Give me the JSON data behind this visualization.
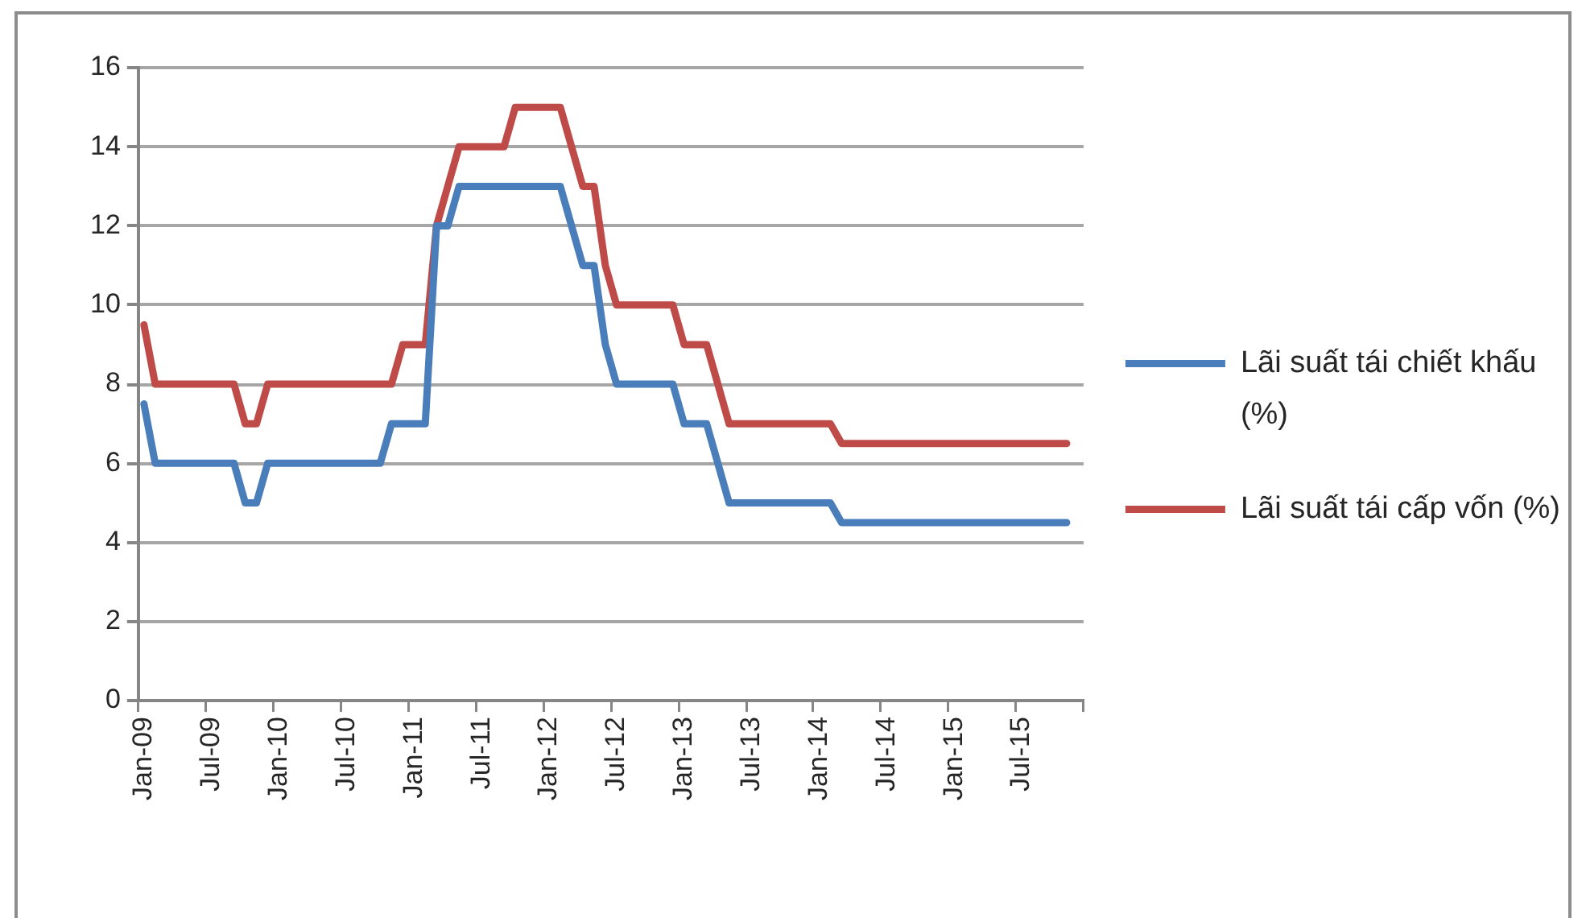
{
  "chart_data": {
    "type": "line",
    "categories": [
      "Jan-09",
      null,
      null,
      null,
      null,
      null,
      "Jul-09",
      null,
      null,
      null,
      null,
      null,
      "Jan-10",
      null,
      null,
      null,
      null,
      null,
      "Jul-10",
      null,
      null,
      null,
      null,
      null,
      "Jan-11",
      null,
      null,
      null,
      null,
      null,
      "Jul-11",
      null,
      null,
      null,
      null,
      null,
      "Jan-12",
      null,
      null,
      null,
      null,
      null,
      "Jul-12",
      null,
      null,
      null,
      null,
      null,
      "Jan-13",
      null,
      null,
      null,
      null,
      null,
      "Jul-13",
      null,
      null,
      null,
      null,
      null,
      "Jan-14",
      null,
      null,
      null,
      null,
      null,
      "Jul-14",
      null,
      null,
      null,
      null,
      null,
      "Jan-15",
      null,
      null,
      null,
      null,
      null,
      "Jul-15",
      null,
      null,
      null,
      null,
      null
    ],
    "series": [
      {
        "name": "Lãi suất tái chiết khấu (%)",
        "color": "#4a7ebb",
        "values": [
          7.5,
          6,
          6,
          6,
          6,
          6,
          6,
          6,
          6,
          5,
          5,
          6,
          6,
          6,
          6,
          6,
          6,
          6,
          6,
          6,
          6,
          6,
          7,
          7,
          7,
          7,
          12,
          12,
          13,
          13,
          13,
          13,
          13,
          13,
          13,
          13,
          13,
          13,
          12,
          11,
          11,
          9,
          8,
          8,
          8,
          8,
          8,
          8,
          7,
          7,
          7,
          6,
          5,
          5,
          5,
          5,
          5,
          5,
          5,
          5,
          5,
          5,
          4.5,
          4.5,
          4.5,
          4.5,
          4.5,
          4.5,
          4.5,
          4.5,
          4.5,
          4.5,
          4.5,
          4.5,
          4.5,
          4.5,
          4.5,
          4.5,
          4.5,
          4.5,
          4.5,
          4.5,
          4.5,
          null
        ]
      },
      {
        "name": "Lãi suất tái cấp vốn (%)",
        "color": "#be4b48",
        "values": [
          9.5,
          8,
          8,
          8,
          8,
          8,
          8,
          8,
          8,
          7,
          7,
          8,
          8,
          8,
          8,
          8,
          8,
          8,
          8,
          8,
          8,
          8,
          8,
          9,
          9,
          9,
          12,
          13,
          14,
          14,
          14,
          14,
          14,
          15,
          15,
          15,
          15,
          15,
          14,
          13,
          13,
          11,
          10,
          10,
          10,
          10,
          10,
          10,
          9,
          9,
          9,
          8,
          7,
          7,
          7,
          7,
          7,
          7,
          7,
          7,
          7,
          7,
          6.5,
          6.5,
          6.5,
          6.5,
          6.5,
          6.5,
          6.5,
          6.5,
          6.5,
          6.5,
          6.5,
          6.5,
          6.5,
          6.5,
          6.5,
          6.5,
          6.5,
          6.5,
          6.5,
          6.5,
          6.5,
          null
        ]
      }
    ],
    "ylim": [
      0,
      16
    ],
    "yticks": [
      0,
      2,
      4,
      6,
      8,
      10,
      12,
      14,
      16
    ],
    "grid": "y",
    "legend": "right",
    "marker": "none",
    "line_style": "solid"
  }
}
